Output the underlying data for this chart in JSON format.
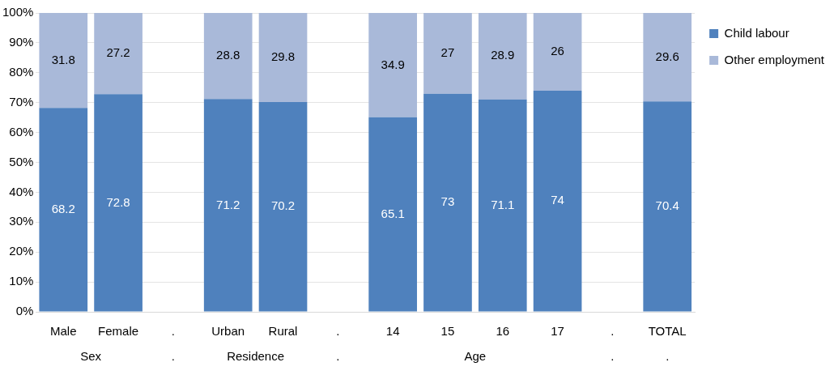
{
  "chart_data": {
    "type": "bar",
    "stacked": true,
    "categories": [
      "Male",
      "Female",
      ".",
      "Urban",
      "Rural",
      ".",
      "14",
      "15",
      "16",
      "17",
      ".",
      "TOTAL"
    ],
    "series": [
      {
        "name": "Child labour",
        "color": "#4f81bd",
        "values": [
          68.2,
          72.8,
          null,
          71.2,
          70.2,
          null,
          65.1,
          73,
          71.1,
          74,
          null,
          70.4
        ]
      },
      {
        "name": "Other employment",
        "color": "#a9b9d9",
        "values": [
          31.8,
          27.2,
          null,
          28.8,
          29.8,
          null,
          34.9,
          27,
          28.9,
          26,
          null,
          29.6
        ]
      }
    ],
    "ylim": [
      0,
      100
    ],
    "yticks": [
      {
        "value": 0,
        "label": "0%"
      },
      {
        "value": 10,
        "label": "10%"
      },
      {
        "value": 20,
        "label": "20%"
      },
      {
        "value": 30,
        "label": "30%"
      },
      {
        "value": 40,
        "label": "40%"
      },
      {
        "value": 50,
        "label": "50%"
      },
      {
        "value": 60,
        "label": "60%"
      },
      {
        "value": 70,
        "label": "70%"
      },
      {
        "value": 80,
        "label": "80%"
      },
      {
        "value": 90,
        "label": "90%"
      },
      {
        "value": 100,
        "label": "100%"
      }
    ],
    "grid": "y",
    "legend": "right",
    "data_labels": true,
    "annotations": [
      "Sex",
      ".",
      "Residence",
      ".",
      "Age",
      ".",
      "."
    ]
  }
}
